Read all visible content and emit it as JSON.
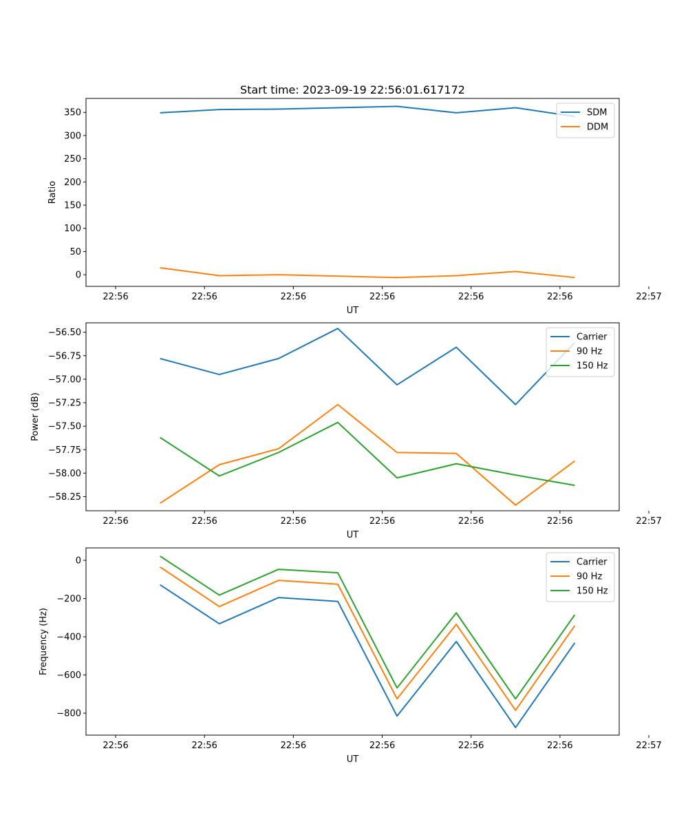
{
  "chart_data": [
    {
      "type": "line",
      "title": "Start time: 2023-09-19 22:56:01.617172",
      "xlabel": "UT",
      "ylabel": "Ratio",
      "xlim": [
        -0.5,
        8.5
      ],
      "ylim": [
        -25,
        380
      ],
      "x_ticks": [
        0,
        1.5,
        3,
        4.5,
        6,
        7.5,
        9
      ],
      "x_tick_labels": [
        "22:56",
        "22:56",
        "22:56",
        "22:56",
        "22:56",
        "22:56",
        "22:57"
      ],
      "y_ticks": [
        0,
        50,
        100,
        150,
        200,
        250,
        300,
        350
      ],
      "y_tick_labels": [
        "0",
        "50",
        "100",
        "150",
        "200",
        "250",
        "300",
        "350"
      ],
      "legend_position": "top-right",
      "series": [
        {
          "name": "SDM",
          "color": "#1f77b4",
          "x": [
            0.75,
            1.75,
            2.75,
            3.75,
            4.75,
            5.75,
            6.75,
            7.75
          ],
          "values": [
            349,
            356,
            357,
            360,
            363,
            349,
            360,
            341
          ]
        },
        {
          "name": "DDM",
          "color": "#ff7f0e",
          "x": [
            0.75,
            1.75,
            2.75,
            3.75,
            4.75,
            5.75,
            6.75,
            7.75
          ],
          "values": [
            15,
            -2,
            0,
            -3,
            -6,
            -2,
            7,
            -6
          ]
        }
      ]
    },
    {
      "type": "line",
      "title": "",
      "xlabel": "UT",
      "ylabel": "Power (dB)",
      "xlim": [
        -0.5,
        8.5
      ],
      "ylim": [
        -58.4,
        -56.4
      ],
      "x_ticks": [
        0,
        1.5,
        3,
        4.5,
        6,
        7.5,
        9
      ],
      "x_tick_labels": [
        "22:56",
        "22:56",
        "22:56",
        "22:56",
        "22:56",
        "22:56",
        "22:57"
      ],
      "y_ticks": [
        -58.25,
        -58.0,
        -57.75,
        -57.5,
        -57.25,
        -57.0,
        -56.75,
        -56.5
      ],
      "y_tick_labels": [
        "−58.25",
        "−58.00",
        "−57.75",
        "−57.50",
        "−57.25",
        "−57.00",
        "−56.75",
        "−56.50"
      ],
      "legend_position": "top-right",
      "series": [
        {
          "name": "Carrier",
          "color": "#1f77b4",
          "x": [
            0.75,
            1.75,
            2.75,
            3.75,
            4.75,
            5.75,
            6.75,
            7.75
          ],
          "values": [
            -56.78,
            -56.95,
            -56.78,
            -56.46,
            -57.06,
            -56.66,
            -57.27,
            -56.61
          ]
        },
        {
          "name": "90 Hz",
          "color": "#ff7f0e",
          "x": [
            0.75,
            1.75,
            2.75,
            3.75,
            4.75,
            5.75,
            6.75,
            7.75
          ],
          "values": [
            -58.32,
            -57.91,
            -57.74,
            -57.27,
            -57.78,
            -57.79,
            -58.34,
            -57.87
          ]
        },
        {
          "name": "150 Hz",
          "color": "#2ca02c",
          "x": [
            0.75,
            1.75,
            2.75,
            3.75,
            4.75,
            5.75,
            6.75,
            7.75
          ],
          "values": [
            -57.62,
            -58.03,
            -57.78,
            -57.46,
            -58.05,
            -57.9,
            -58.02,
            -58.13
          ]
        }
      ]
    },
    {
      "type": "line",
      "title": "",
      "xlabel": "UT",
      "ylabel": "Frequency (Hz)",
      "xlim": [
        -0.5,
        8.5
      ],
      "ylim": [
        -915,
        65
      ],
      "x_ticks": [
        0,
        1.5,
        3,
        4.5,
        6,
        7.5,
        9
      ],
      "x_tick_labels": [
        "22:56",
        "22:56",
        "22:56",
        "22:56",
        "22:56",
        "22:56",
        "22:57"
      ],
      "y_ticks": [
        -800,
        -600,
        -400,
        -200,
        0
      ],
      "y_tick_labels": [
        "−800",
        "−600",
        "−400",
        "−200",
        "0"
      ],
      "legend_position": "top-right",
      "series": [
        {
          "name": "Carrier",
          "color": "#1f77b4",
          "x": [
            0.75,
            1.75,
            2.75,
            3.75,
            4.75,
            5.75,
            6.75,
            7.75
          ],
          "values": [
            -128,
            -332,
            -195,
            -215,
            -815,
            -425,
            -875,
            -432
          ]
        },
        {
          "name": "90 Hz",
          "color": "#ff7f0e",
          "x": [
            0.75,
            1.75,
            2.75,
            3.75,
            4.75,
            5.75,
            6.75,
            7.75
          ],
          "values": [
            -35,
            -242,
            -105,
            -125,
            -725,
            -335,
            -785,
            -342
          ]
        },
        {
          "name": "150 Hz",
          "color": "#2ca02c",
          "x": [
            0.75,
            1.75,
            2.75,
            3.75,
            4.75,
            5.75,
            6.75,
            7.75
          ],
          "values": [
            22,
            -182,
            -47,
            -65,
            -668,
            -275,
            -725,
            -285
          ]
        }
      ]
    }
  ]
}
